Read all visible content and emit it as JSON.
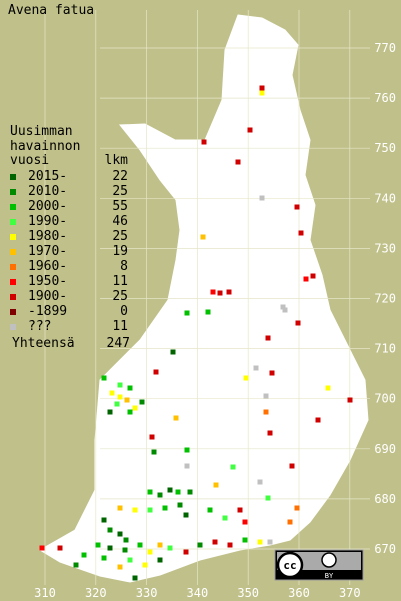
{
  "title": "Avena fatua",
  "legend": {
    "heading": [
      "Uusimman",
      "havainnon",
      "vuosi"
    ],
    "count_heading": "lkm",
    "entries": [
      {
        "label": "2015-",
        "count": 22,
        "color": "#006400"
      },
      {
        "label": "2010-",
        "count": 25,
        "color": "#008a00"
      },
      {
        "label": "2000-",
        "count": 55,
        "color": "#00c000"
      },
      {
        "label": "1990-",
        "count": 46,
        "color": "#40ff40"
      },
      {
        "label": "1980-",
        "count": 25,
        "color": "#ffff00"
      },
      {
        "label": "1970-",
        "count": 19,
        "color": "#ffc000"
      },
      {
        "label": "1960-",
        "count": 8,
        "color": "#ff7000"
      },
      {
        "label": "1950-",
        "count": 11,
        "color": "#ff0000"
      },
      {
        "label": "1900-",
        "count": 25,
        "color": "#d00000"
      },
      {
        "label": "-1899",
        "count": 0,
        "color": "#800000"
      },
      {
        "label": "???",
        "count": 11,
        "color": "#c0c0c0"
      }
    ],
    "total_label": "Yhteensä",
    "total": 247
  },
  "grid": {
    "x_labels": [
      310,
      320,
      330,
      340,
      350,
      360,
      370
    ],
    "y_labels": [
      670,
      680,
      690,
      700,
      710,
      720,
      730,
      740,
      750,
      760,
      770
    ]
  },
  "license": {
    "cc": "cc",
    "by": "BY"
  }
}
